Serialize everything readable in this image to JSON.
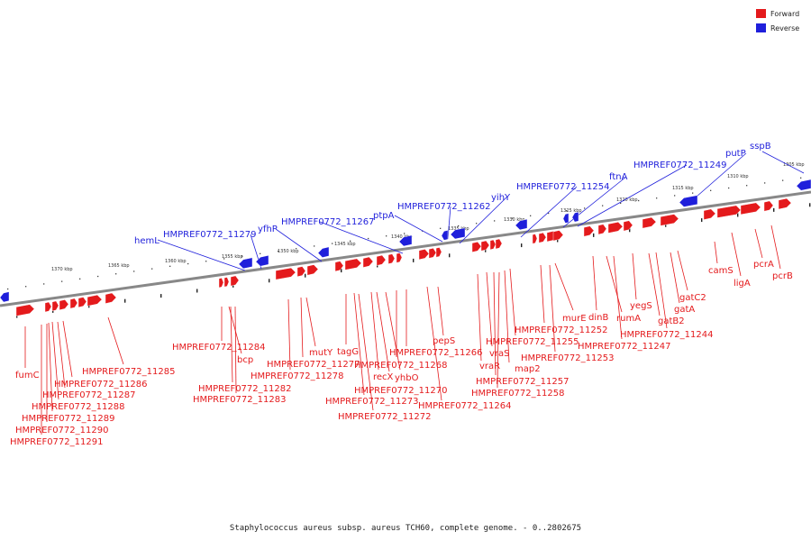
{
  "legend": {
    "forward_label": "Forward",
    "reverse_label": "Reverse",
    "forward_color": "#e41a1c",
    "reverse_color": "#1f1fdb"
  },
  "caption": "Staphylococcus aureus subsp. aureus TCH60, complete genome. - 0..2802675",
  "track": {
    "axis_color": "#888888",
    "tick_labels": [
      "1370 kbp",
      "1365 kbp",
      "1360 kbp",
      "1355 kbp",
      "1350 kbp",
      "1345 kbp",
      "1340 kbp",
      "1335 kbp",
      "1330 kbp",
      "1325 kbp",
      "1320 kbp",
      "1315 kbp",
      "1310 kbp",
      "1305 kbp"
    ]
  },
  "reverse_genes": [
    "hemL",
    "HMPREF0772_11279",
    "yfhP",
    "HMPREF0772_11267",
    "ptpA",
    "HMPREF0772_11262",
    "yihY",
    "HMPREF0772_11254",
    "ftnA",
    "HMPREF0772_11249",
    "putP",
    "sspB"
  ],
  "forward_genes": [
    "fumC",
    "HMPREF0772_11285",
    "HMPREF0772_11286",
    "HMPREF0772_11287",
    "HMPREF0772_11288",
    "HMPREF0772_11289",
    "HMPREF0772_11290",
    "HMPREF0772_11291",
    "HMPREF0772_11284",
    "bcp",
    "HMPREF0772_11282",
    "HMPREF0772_11283",
    "mutY",
    "HMPREF0772_11277",
    "HMPREF0772_11278",
    "tagG",
    "HMPREF0772_11273",
    "HMPREF0772_11272",
    "recX",
    "yhbO",
    "HMPREF0772_11270",
    "HMPREF0772_11268",
    "HMPREF0772_11266",
    "pepS",
    "HMPREF0772_11264",
    "vraS",
    "vraR",
    "map2",
    "HMPREF0772_11257",
    "HMPREF0772_11258",
    "HMPREF0772_11255",
    "HMPREF0772_11252",
    "HMPREF0772_11253",
    "murE",
    "dinB",
    "rumA",
    "HMPREF0772_11247",
    "yegS",
    "gatB2",
    "HMPREF0772_11244",
    "gatA",
    "gatC2",
    "camS",
    "ligA",
    "pcrA",
    "pcrB"
  ]
}
